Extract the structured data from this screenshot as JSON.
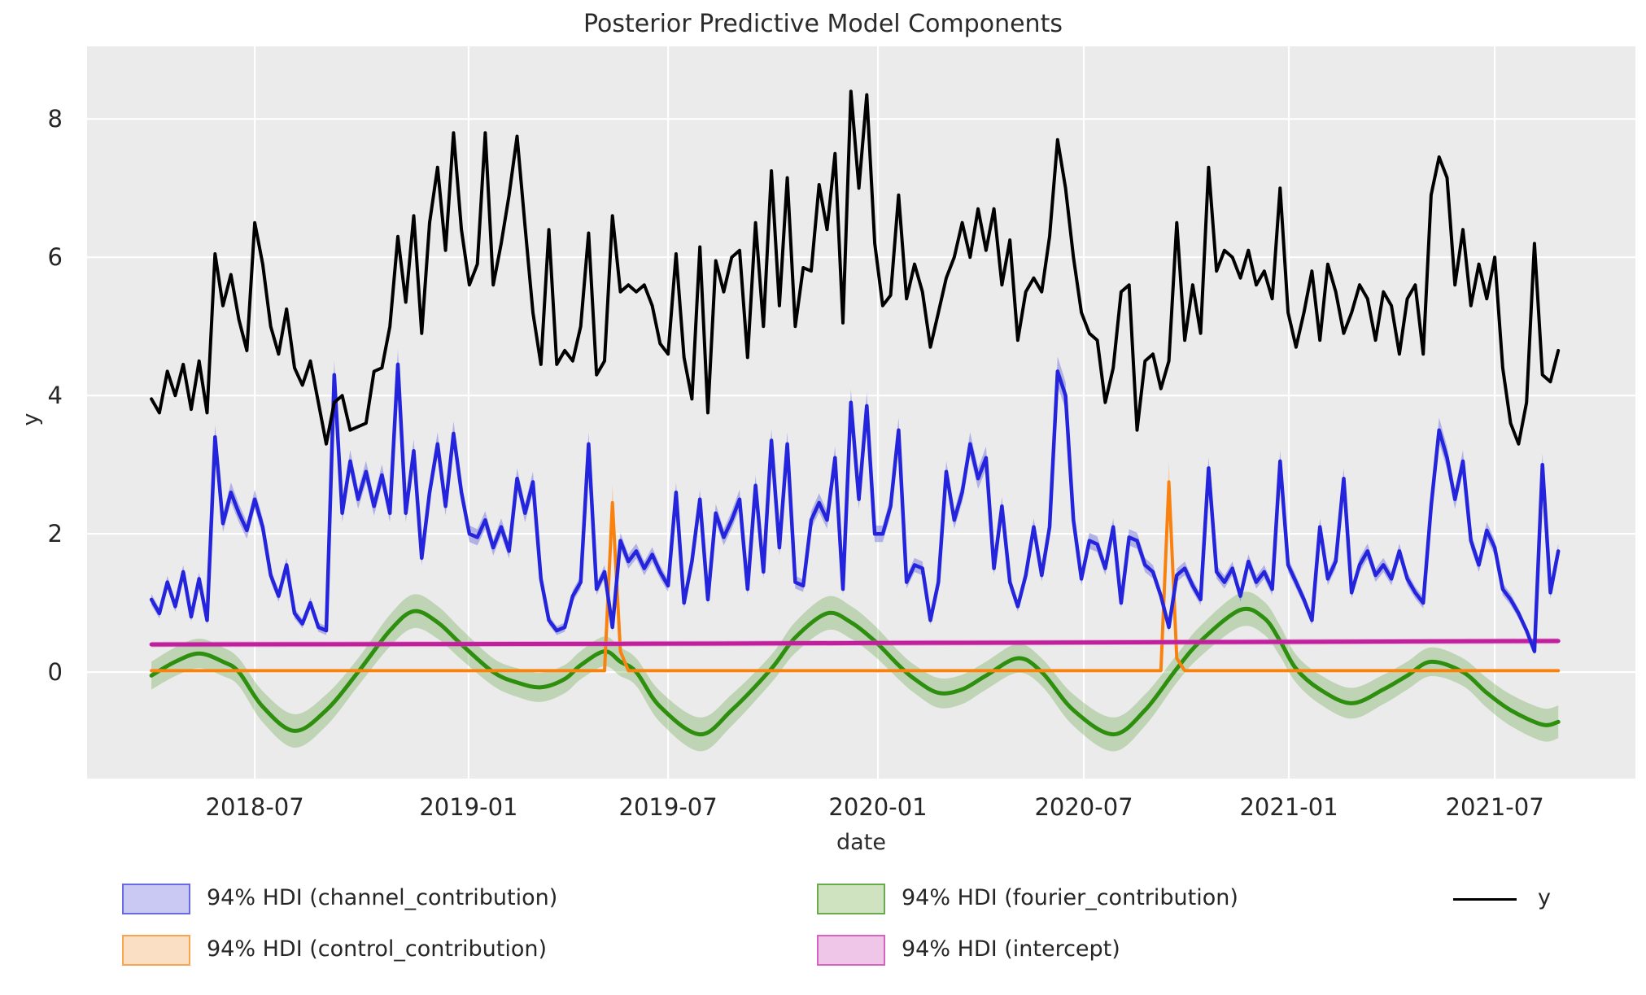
{
  "title": "Posterior Predictive Model Components",
  "axes": {
    "xlabel": "date",
    "ylabel": "y",
    "y_ticks": [
      0,
      2,
      4,
      6,
      8
    ],
    "x_ticks": [
      {
        "week": 13.0,
        "label": "2018-07"
      },
      {
        "week": 39.9,
        "label": "2019-01"
      },
      {
        "week": 65.0,
        "label": "2019-07"
      },
      {
        "week": 91.4,
        "label": "2020-01"
      },
      {
        "week": 117.3,
        "label": "2020-07"
      },
      {
        "week": 143.1,
        "label": "2021-01"
      },
      {
        "week": 169.0,
        "label": "2021-07"
      }
    ]
  },
  "legend": {
    "channel": "94% HDI (channel_contribution)",
    "control": "94% HDI (control_contribution)",
    "fourier": "94% HDI (fourier_contribution)",
    "intercept": "94% HDI (intercept)",
    "y": "y"
  },
  "colors": {
    "background": "#ffffff",
    "plot_bg": "#ebebeb",
    "grid": "#ffffff",
    "text": "#262626",
    "y_line": "#000000",
    "channel_line": "#2424dd",
    "channel_band": "#6a6ae0",
    "channel_patch": "#c9c9f3",
    "control_line": "#f9820f",
    "control_band": "#f9a550",
    "control_patch": "#fbdfc4",
    "fourier_line": "#2e8f0e",
    "fourier_band": "#6aa94f",
    "fourier_patch": "#cfe3c0",
    "intercept_line": "#c0209c",
    "intercept_band": "#d563c2",
    "intercept_patch": "#efc6e7"
  },
  "chart_data": {
    "type": "line",
    "title": "Posterior Predictive Model Components",
    "xlabel": "date",
    "ylabel": "y",
    "grid": true,
    "legend_position": "below",
    "start_date": "2018-04-01",
    "freq_days": 7,
    "n_points": 178,
    "xlim_weeks": [
      -8.1,
      186.7
    ],
    "ylim": [
      -1.54,
      9.05
    ],
    "series": [
      {
        "name": "y",
        "kind": "line",
        "color_key": "y_line",
        "width": 4,
        "values": [
          3.95,
          3.75,
          4.35,
          4.0,
          4.45,
          3.8,
          4.5,
          3.75,
          6.05,
          5.3,
          5.75,
          5.1,
          4.65,
          6.5,
          5.9,
          5.0,
          4.6,
          5.25,
          4.4,
          4.15,
          4.5,
          3.9,
          3.3,
          3.9,
          4.0,
          3.5,
          3.55,
          3.6,
          4.35,
          4.4,
          5.0,
          6.3,
          5.35,
          6.6,
          4.9,
          6.5,
          7.3,
          6.1,
          7.8,
          6.4,
          5.6,
          5.9,
          7.8,
          5.6,
          6.2,
          6.9,
          7.75,
          6.45,
          5.2,
          4.45,
          6.4,
          4.45,
          4.65,
          4.5,
          5.0,
          6.35,
          4.3,
          4.5,
          6.6,
          5.5,
          5.6,
          5.5,
          5.6,
          5.3,
          4.75,
          4.6,
          6.05,
          4.55,
          3.95,
          6.15,
          3.75,
          5.95,
          5.5,
          6.0,
          6.1,
          4.55,
          6.5,
          5.0,
          7.25,
          5.3,
          7.15,
          5.0,
          5.85,
          5.8,
          7.05,
          6.4,
          7.5,
          5.05,
          8.4,
          7.0,
          8.35,
          6.2,
          5.3,
          5.45,
          6.9,
          5.4,
          5.9,
          5.5,
          4.7,
          5.2,
          5.7,
          6.0,
          6.5,
          6.0,
          6.7,
          6.1,
          6.7,
          5.6,
          6.25,
          4.8,
          5.5,
          5.7,
          5.5,
          6.3,
          7.7,
          7.0,
          6.0,
          5.2,
          4.9,
          4.8,
          3.9,
          4.4,
          5.5,
          5.6,
          3.5,
          4.5,
          4.6,
          4.1,
          4.5,
          6.5,
          4.8,
          5.6,
          4.9,
          7.3,
          5.8,
          6.1,
          6.0,
          5.7,
          6.1,
          5.6,
          5.8,
          5.4,
          7.0,
          5.2,
          4.7,
          5.2,
          5.8,
          4.8,
          5.9,
          5.5,
          4.9,
          5.2,
          5.6,
          5.4,
          4.8,
          5.5,
          5.3,
          4.6,
          5.4,
          5.6,
          4.6,
          6.9,
          7.45,
          7.15,
          5.6,
          6.4,
          5.3,
          5.9,
          5.4,
          6.0,
          4.4,
          3.6,
          3.3,
          3.9,
          6.2,
          4.3,
          4.2,
          4.65
        ]
      },
      {
        "name": "channel_contribution",
        "kind": "line+hdi",
        "color_key": "channel_line",
        "band_color_key": "channel_band",
        "band_opacity": 0.45,
        "width": 4.5,
        "hdi_band": {
          "base": 0.04,
          "scale": 0.04
        },
        "values": [
          1.05,
          0.85,
          1.3,
          0.95,
          1.45,
          0.8,
          1.35,
          0.75,
          3.4,
          2.15,
          2.6,
          2.3,
          2.05,
          2.5,
          2.1,
          1.4,
          1.1,
          1.55,
          0.85,
          0.7,
          1.0,
          0.65,
          0.6,
          4.3,
          2.3,
          3.05,
          2.5,
          2.9,
          2.4,
          2.85,
          2.3,
          4.45,
          2.3,
          3.2,
          1.65,
          2.6,
          3.3,
          2.4,
          3.45,
          2.6,
          2.0,
          1.95,
          2.2,
          1.8,
          2.1,
          1.75,
          2.8,
          2.3,
          2.75,
          1.35,
          0.75,
          0.6,
          0.65,
          1.1,
          1.3,
          3.3,
          1.2,
          1.45,
          0.65,
          1.9,
          1.6,
          1.75,
          1.5,
          1.7,
          1.45,
          1.25,
          2.6,
          1.0,
          1.6,
          2.5,
          1.05,
          2.3,
          1.95,
          2.2,
          2.5,
          1.2,
          2.7,
          1.45,
          3.35,
          1.8,
          3.3,
          1.3,
          1.25,
          2.2,
          2.45,
          2.2,
          3.1,
          1.2,
          3.9,
          2.5,
          3.85,
          2.0,
          2.0,
          2.4,
          3.5,
          1.3,
          1.55,
          1.5,
          0.75,
          1.3,
          2.9,
          2.2,
          2.6,
          3.3,
          2.8,
          3.1,
          1.5,
          2.4,
          1.3,
          0.95,
          1.4,
          2.1,
          1.4,
          2.1,
          4.35,
          4.0,
          2.2,
          1.35,
          1.9,
          1.85,
          1.5,
          2.1,
          1.0,
          1.95,
          1.9,
          1.55,
          1.45,
          1.1,
          0.65,
          1.4,
          1.5,
          1.25,
          1.05,
          2.95,
          1.45,
          1.3,
          1.5,
          1.1,
          1.6,
          1.3,
          1.45,
          1.2,
          3.05,
          1.55,
          1.3,
          1.05,
          0.75,
          2.1,
          1.35,
          1.6,
          2.8,
          1.15,
          1.55,
          1.75,
          1.4,
          1.55,
          1.35,
          1.75,
          1.35,
          1.15,
          1.0,
          2.4,
          3.5,
          3.1,
          2.5,
          3.05,
          1.9,
          1.55,
          2.05,
          1.8,
          1.2,
          1.05,
          0.85,
          0.6,
          0.3,
          3.0,
          1.15,
          1.75
        ]
      },
      {
        "name": "control_contribution",
        "kind": "spikes+hdi",
        "color_key": "control_line",
        "band_color_key": "control_band",
        "band_opacity": 0.4,
        "width": 4,
        "hdi_band": {
          "base": 0.02,
          "scale": 0.1
        },
        "baseline": 0.02,
        "spikes": [
          {
            "week": 58,
            "value": 2.45,
            "after": 0.3
          },
          {
            "week": 128,
            "value": 2.75,
            "after": 0.2
          }
        ]
      },
      {
        "name": "fourier_contribution",
        "kind": "smooth+hdi",
        "color_key": "fourier_line",
        "band_color_key": "fourier_band",
        "band_opacity": 0.35,
        "width": 5,
        "hdi_band": {
          "base": 0.2,
          "scale": 0.05
        },
        "anchors": [
          [
            0,
            -0.05
          ],
          [
            3,
            0.15
          ],
          [
            6,
            0.27
          ],
          [
            9,
            0.15
          ],
          [
            11,
            0
          ],
          [
            14,
            -0.5
          ],
          [
            18,
            -0.85
          ],
          [
            22,
            -0.55
          ],
          [
            26,
            0
          ],
          [
            30,
            0.6
          ],
          [
            33,
            0.88
          ],
          [
            36,
            0.72
          ],
          [
            39,
            0.4
          ],
          [
            43,
            0
          ],
          [
            46,
            -0.15
          ],
          [
            49,
            -0.22
          ],
          [
            52,
            -0.1
          ],
          [
            54,
            0.1
          ],
          [
            57,
            0.3
          ],
          [
            59,
            0.15
          ],
          [
            61,
            0
          ],
          [
            64,
            -0.5
          ],
          [
            69,
            -0.9
          ],
          [
            73,
            -0.55
          ],
          [
            78,
            0.05
          ],
          [
            81,
            0.5
          ],
          [
            85,
            0.85
          ],
          [
            88,
            0.72
          ],
          [
            91,
            0.45
          ],
          [
            94,
            0.1
          ],
          [
            96,
            -0.1
          ],
          [
            99,
            -0.3
          ],
          [
            102,
            -0.25
          ],
          [
            105,
            -0.05
          ],
          [
            109,
            0.2
          ],
          [
            112,
            0
          ],
          [
            116,
            -0.55
          ],
          [
            121,
            -0.9
          ],
          [
            125,
            -0.55
          ],
          [
            129,
            0.05
          ],
          [
            132,
            0.45
          ],
          [
            137,
            0.9
          ],
          [
            140,
            0.78
          ],
          [
            142,
            0.45
          ],
          [
            144,
            0.05
          ],
          [
            147,
            -0.25
          ],
          [
            151,
            -0.45
          ],
          [
            155,
            -0.25
          ],
          [
            158,
            -0.05
          ],
          [
            161,
            0.15
          ],
          [
            165,
            0
          ],
          [
            168,
            -0.3
          ],
          [
            171,
            -0.55
          ],
          [
            175,
            -0.76
          ],
          [
            177,
            -0.72
          ]
        ]
      },
      {
        "name": "intercept",
        "kind": "smooth+hdi",
        "color_key": "intercept_line",
        "band_color_key": "intercept_band",
        "band_opacity": 0.45,
        "width": 5,
        "hdi_band": {
          "base": 0.04,
          "scale": 0.0
        },
        "anchors": [
          [
            0,
            0.4
          ],
          [
            30,
            0.405
          ],
          [
            60,
            0.41
          ],
          [
            90,
            0.42
          ],
          [
            120,
            0.43
          ],
          [
            150,
            0.44
          ],
          [
            177,
            0.45
          ]
        ]
      }
    ]
  }
}
